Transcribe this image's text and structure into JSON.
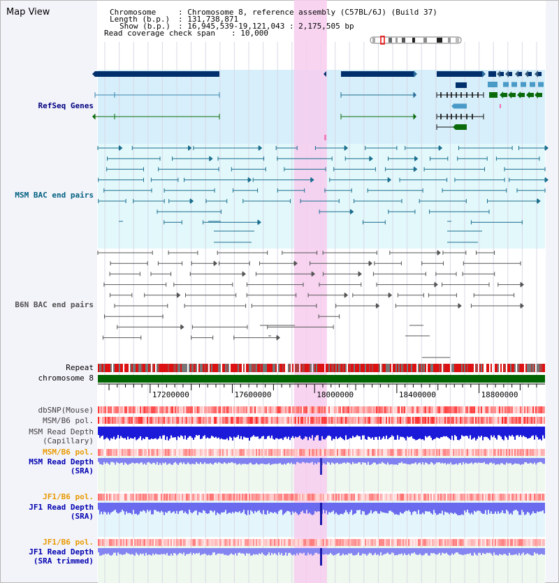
{
  "panel_title": "Map View",
  "info": {
    "chromosome_key": "Chromosome",
    "chromosome_value": ": Chromosome 8, reference assembly (C57BL/6J) (Build 37)",
    "length_key": "Length (b.p.)",
    "length_value": ": 131,738,871",
    "show_key": "Show (b.p.)",
    "show_value": ": 16,945,539-19,121,043 : 2,175,505 bp",
    "coverage_key": "Read coverage check span",
    "coverage_value": ": 10,000"
  },
  "tracks": {
    "refseq": "RefSeq Genes",
    "msm_bac": "MSM BAC end pairs",
    "b6n_bac": "B6N BAC end pairs",
    "repeat": "Repeat",
    "chromosome": "chromosome 8",
    "dbsnp": "dbSNP(Mouse)",
    "msm_pol_1": "MSM/B6 pol.",
    "msm_depth_cap_1": "MSM Read Depth",
    "msm_depth_cap_2": "(Capillary)",
    "msm_pol_2": "MSM/B6 pol.",
    "msm_depth_sra_1": "MSM Read Depth",
    "msm_depth_sra_2": "(SRA)",
    "jf1_pol_1": "JF1/B6 pol.",
    "jf1_depth_sra_1": "JF1 Read Depth",
    "jf1_depth_sra_2": "(SRA)",
    "jf1_pol_2": "JF1/B6 pol.",
    "jf1_depth_trim_1": "JF1 Read Depth",
    "jf1_depth_trim_2": "(SRA trimmed)"
  },
  "axis": {
    "range_bp": [
      16945539,
      19121043
    ],
    "ticks": [
      "17200000",
      "17600000",
      "18000000",
      "18400000",
      "18800000"
    ],
    "tick_values": [
      17200000,
      17600000,
      18000000,
      18400000,
      18800000
    ]
  },
  "highlight_bp": [
    17900000,
    18060000
  ],
  "colors": {
    "gene_navy": "#002f6c",
    "gene_light": "#4a9ac8",
    "gene_green": "#0b6b0b",
    "bac_msm": "#1a6e8e",
    "bac_b6n": "#555555",
    "repeat_red": "#dd1111",
    "chrom_green": "#006400",
    "highlight": "#f7cdee",
    "depth_dark": "#1a1ad8",
    "depth_light": "#8080f0"
  }
}
